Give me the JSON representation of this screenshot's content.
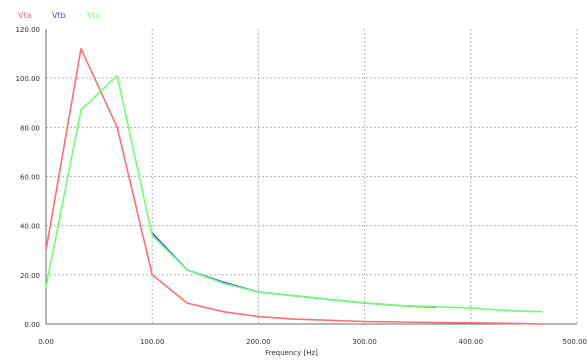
{
  "chart_data": {
    "type": "line",
    "title": "",
    "xlabel": "Frequency [Hz]",
    "ylabel": "",
    "xlim": [
      0,
      500
    ],
    "ylim": [
      0,
      120
    ],
    "x_ticks": [
      "0.00",
      "100.00",
      "200.00",
      "300.00",
      "400.00",
      "500.00"
    ],
    "y_ticks": [
      "0.00",
      "20.00",
      "40.00",
      "60.00",
      "80.00",
      "100.00",
      "120.00"
    ],
    "grid": true,
    "legend_position": "top-left",
    "series": [
      {
        "name": "Vta",
        "color": "#ff7070",
        "x": [
          0,
          33,
          67,
          100,
          133,
          167,
          200,
          233,
          267,
          300,
          333,
          367,
          400,
          433,
          467
        ],
        "y": [
          30,
          112,
          80,
          20,
          8.5,
          5,
          3,
          2,
          1.5,
          1,
          0.8,
          0.6,
          0.5,
          0.3,
          0
        ]
      },
      {
        "name": "Vtb",
        "color": "#5050ff",
        "x": [
          100,
          133,
          167,
          200,
          233,
          267,
          300,
          333,
          367
        ],
        "y": [
          37,
          22,
          17,
          13,
          11.5,
          10,
          8.5,
          7.5,
          6.8
        ]
      },
      {
        "name": "Vtc",
        "color": "#70ff70",
        "x": [
          0,
          33,
          67,
          100,
          133,
          167,
          200,
          233,
          267,
          300,
          333,
          367,
          400,
          433,
          467
        ],
        "y": [
          15,
          87,
          101,
          36,
          22,
          16.5,
          13,
          11.5,
          10,
          8.5,
          7.5,
          7,
          6.5,
          5.5,
          5
        ]
      }
    ]
  }
}
